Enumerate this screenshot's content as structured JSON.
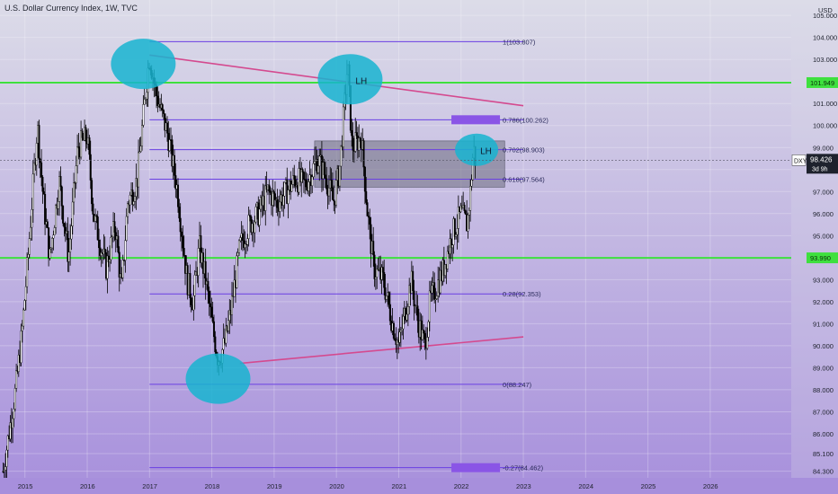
{
  "header": {
    "title": "U.S. Dollar Currency Index, 1W, TVC",
    "currency": "USD"
  },
  "symbol": {
    "ticker": "DXY",
    "price": "98.426",
    "countdown": "3d 9h"
  },
  "colors": {
    "background_top": "#dcdce8",
    "background_bottom": "#a78fdc",
    "candle": "#000000",
    "fib_line": "#6a3fe3",
    "fib_box": "#8a55e6",
    "horizontal_level": "#3ee03e",
    "trendline": "#d44a8f",
    "ellipse": "#17b4d0",
    "zone": "#6e6e7e",
    "axis_text": "#1e222d"
  },
  "chart_data": {
    "type": "candlestick",
    "title": "U.S. Dollar Currency Index, 1W, TVC",
    "x": [
      "2015",
      "2016",
      "2017",
      "2018",
      "2019",
      "2020",
      "2021",
      "2022",
      "2023",
      "2024",
      "2025",
      "2026"
    ],
    "xlim": [
      2014.6,
      2027.3
    ],
    "ylim": [
      84.0,
      105.7
    ],
    "y_ticks": [
      "84.300",
      "85.100",
      "86.000",
      "87.000",
      "88.000",
      "89.000",
      "90.000",
      "91.000",
      "92.000",
      "93.000",
      "94.000",
      "95.000",
      "96.000",
      "97.000",
      "98.000",
      "99.000",
      "100.000",
      "101.000",
      "102.000",
      "103.000",
      "104.000",
      "105.000"
    ],
    "price_path": [
      [
        2014.65,
        84.3
      ],
      [
        2014.85,
        88.0
      ],
      [
        2014.95,
        90.5
      ],
      [
        2015.05,
        94.0
      ],
      [
        2015.2,
        100.0
      ],
      [
        2015.3,
        96.5
      ],
      [
        2015.4,
        94.0
      ],
      [
        2015.55,
        97.5
      ],
      [
        2015.7,
        94.0
      ],
      [
        2015.85,
        99.0
      ],
      [
        2016.0,
        99.5
      ],
      [
        2016.1,
        96.0
      ],
      [
        2016.3,
        93.5
      ],
      [
        2016.45,
        95.5
      ],
      [
        2016.55,
        92.5
      ],
      [
        2016.65,
        96.5
      ],
      [
        2016.8,
        97.5
      ],
      [
        2016.92,
        101.0
      ],
      [
        2017.0,
        103.2
      ],
      [
        2017.1,
        101.5
      ],
      [
        2017.2,
        100.5
      ],
      [
        2017.3,
        99.5
      ],
      [
        2017.45,
        97.0
      ],
      [
        2017.6,
        93.0
      ],
      [
        2017.7,
        92.0
      ],
      [
        2017.8,
        94.5
      ],
      [
        2017.9,
        93.0
      ],
      [
        2018.0,
        91.0
      ],
      [
        2018.1,
        89.4
      ],
      [
        2018.2,
        90.0
      ],
      [
        2018.3,
        91.5
      ],
      [
        2018.45,
        94.5
      ],
      [
        2018.6,
        95.5
      ],
      [
        2018.75,
        96.0
      ],
      [
        2018.9,
        97.0
      ],
      [
        2019.05,
        96.5
      ],
      [
        2019.2,
        97.0
      ],
      [
        2019.35,
        97.6
      ],
      [
        2019.5,
        97.3
      ],
      [
        2019.7,
        98.5
      ],
      [
        2019.85,
        97.5
      ],
      [
        2019.95,
        96.5
      ],
      [
        2020.05,
        98.0
      ],
      [
        2020.18,
        102.8
      ],
      [
        2020.25,
        99.0
      ],
      [
        2020.4,
        99.5
      ],
      [
        2020.5,
        96.0
      ],
      [
        2020.6,
        93.5
      ],
      [
        2020.75,
        93.0
      ],
      [
        2020.9,
        91.0
      ],
      [
        2021.0,
        90.0
      ],
      [
        2021.1,
        91.5
      ],
      [
        2021.2,
        93.0
      ],
      [
        2021.3,
        91.2
      ],
      [
        2021.42,
        90.0
      ],
      [
        2021.5,
        92.0
      ],
      [
        2021.7,
        93.3
      ],
      [
        2021.85,
        95.0
      ],
      [
        2022.0,
        96.0
      ],
      [
        2022.1,
        95.5
      ],
      [
        2022.15,
        97.0
      ],
      [
        2022.2,
        99.0
      ],
      [
        2022.23,
        98.4
      ]
    ],
    "fib_levels": [
      {
        "label": "1(103.807)",
        "value": 103.807,
        "box": false
      },
      {
        "label": "0.786(100.262)",
        "value": 100.262,
        "box": true
      },
      {
        "label": "0.702(98.903)",
        "value": 98.903,
        "box": false
      },
      {
        "label": "0.618(97.564)",
        "value": 97.564,
        "box": false
      },
      {
        "label": "0.28(92.353)",
        "value": 92.353,
        "box": false
      },
      {
        "label": "0(88.247)",
        "value": 88.247,
        "box": false
      },
      {
        "label": "-0.27(84.462)",
        "value": 84.462,
        "box": true
      }
    ],
    "fib_x_range": [
      2017.0,
      2023.0
    ],
    "horizontal_levels": [
      {
        "value": 101.949,
        "label": "101.949"
      },
      {
        "value": 93.99,
        "label": "93.990"
      }
    ],
    "trendlines": [
      {
        "from": [
          2017.0,
          103.2
        ],
        "to": [
          2023.0,
          100.9
        ]
      },
      {
        "from": [
          2018.45,
          89.2
        ],
        "to": [
          2023.0,
          90.4
        ]
      }
    ],
    "zone": {
      "x": [
        2019.65,
        2022.7
      ],
      "y": [
        97.2,
        99.3
      ]
    },
    "highlights": [
      {
        "center": [
          2016.9,
          102.8
        ],
        "label": ""
      },
      {
        "center": [
          2020.22,
          102.1
        ],
        "label": "LH"
      },
      {
        "center": [
          2022.25,
          98.9
        ],
        "label": "LH"
      },
      {
        "center": [
          2018.1,
          88.5
        ],
        "label": ""
      }
    ],
    "last_price": 98.426
  }
}
